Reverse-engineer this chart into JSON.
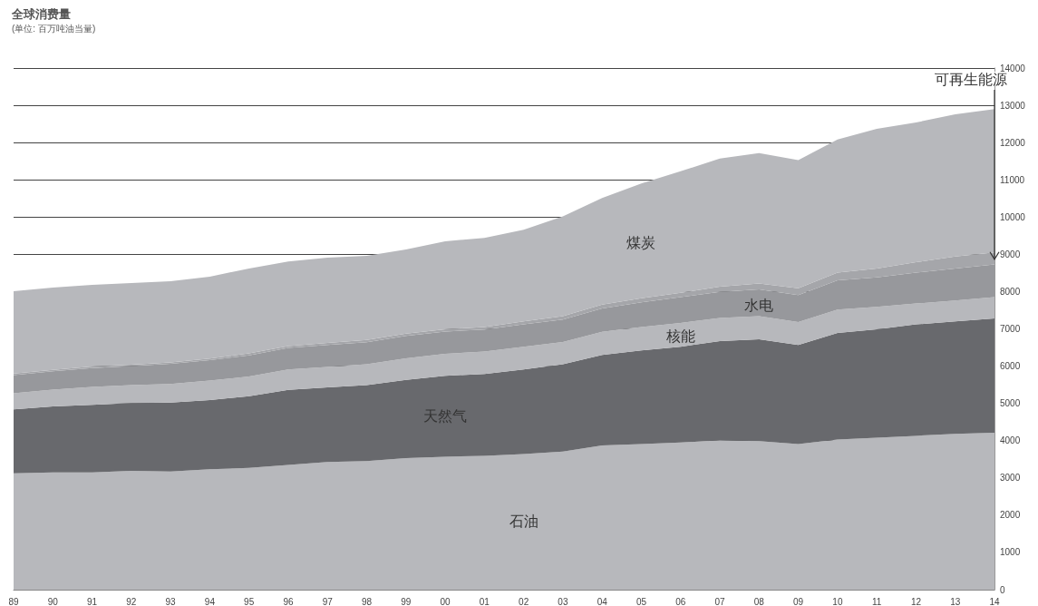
{
  "chart_data": {
    "type": "area",
    "title": "全球消费量",
    "subtitle": "(单位: 百万吨油当量)",
    "categories": [
      "89",
      "90",
      "91",
      "92",
      "93",
      "94",
      "95",
      "96",
      "97",
      "98",
      "99",
      "00",
      "01",
      "02",
      "03",
      "04",
      "05",
      "06",
      "07",
      "08",
      "09",
      "10",
      "11",
      "12",
      "13",
      "14"
    ],
    "stacked": true,
    "grid": "y",
    "ylim": [
      0,
      14000
    ],
    "yticks": [
      0,
      1000,
      2000,
      3000,
      4000,
      5000,
      6000,
      7000,
      8000,
      9000,
      10000,
      11000,
      12000,
      13000,
      14000
    ],
    "series": [
      {
        "name": "石油",
        "color": "#b7b8bc",
        "values": [
          3120,
          3150,
          3150,
          3190,
          3170,
          3230,
          3270,
          3350,
          3430,
          3450,
          3530,
          3570,
          3590,
          3640,
          3710,
          3870,
          3910,
          3950,
          4010,
          3990,
          3910,
          4030,
          4080,
          4130,
          4180,
          4210
        ]
      },
      {
        "name": "天然气",
        "color": "#68696d",
        "values": [
          1720,
          1770,
          1810,
          1820,
          1850,
          1860,
          1920,
          2010,
          2000,
          2040,
          2100,
          2170,
          2200,
          2270,
          2340,
          2430,
          2510,
          2570,
          2660,
          2730,
          2660,
          2860,
          2910,
          2990,
          3020,
          3070
        ]
      },
      {
        "name": "核能",
        "color": "#b7b8bc",
        "values": [
          430,
          450,
          480,
          480,
          500,
          520,
          530,
          550,
          550,
          560,
          580,
          590,
          600,
          610,
          600,
          620,
          630,
          640,
          620,
          620,
          610,
          630,
          600,
          560,
          560,
          570
        ]
      },
      {
        "name": "水电",
        "color": "#97989c",
        "values": [
          490,
          490,
          510,
          510,
          540,
          550,
          570,
          580,
          590,
          590,
          600,
          600,
          590,
          600,
          600,
          630,
          660,
          690,
          700,
          720,
          730,
          780,
          790,
          830,
          860,
          880
        ]
      },
      {
        "name": "可再生能源",
        "color": "#a5a6aa",
        "values": [
          40,
          40,
          40,
          40,
          40,
          40,
          50,
          50,
          50,
          60,
          60,
          60,
          70,
          80,
          90,
          100,
          110,
          120,
          140,
          160,
          180,
          210,
          240,
          280,
          320,
          320
        ]
      },
      {
        "name": "煤炭",
        "color": "#b7b8bc",
        "values": [
          2210,
          2210,
          2190,
          2190,
          2180,
          2200,
          2280,
          2270,
          2290,
          2260,
          2260,
          2360,
          2390,
          2460,
          2680,
          2860,
          3080,
          3260,
          3440,
          3500,
          3440,
          3570,
          3750,
          3750,
          3820,
          3850
        ]
      }
    ]
  }
}
